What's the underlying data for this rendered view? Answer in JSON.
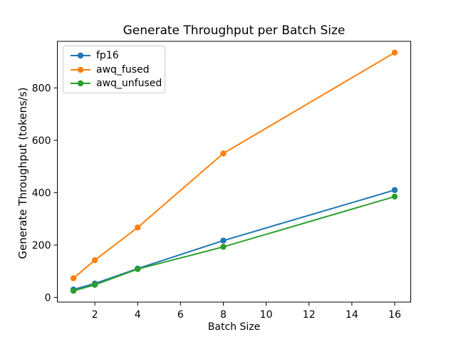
{
  "chart_data": {
    "type": "line",
    "title": "Generate Throughput per Batch Size",
    "xlabel": "Batch Size",
    "ylabel": "Generate Throughput (tokens/s)",
    "x": [
      1,
      2,
      4,
      8,
      16
    ],
    "series": [
      {
        "name": "fp16",
        "color": "#1f77b4",
        "values": [
          30,
          53,
          110,
          217,
          410
        ]
      },
      {
        "name": "awq_fused",
        "color": "#ff7f0e",
        "values": [
          73,
          142,
          267,
          550,
          935
        ]
      },
      {
        "name": "awq_unfused",
        "color": "#2ca02c",
        "values": [
          25,
          48,
          108,
          193,
          385
        ]
      }
    ],
    "x_ticks": [
      2,
      4,
      6,
      8,
      10,
      12,
      14,
      16
    ],
    "y_ticks": [
      0,
      200,
      400,
      600,
      800
    ],
    "xlim": [
      0.25,
      16.75
    ],
    "ylim": [
      -18,
      978
    ],
    "grid": false,
    "marker": "o",
    "legend_position": "upper left",
    "background_color": "#ffffff",
    "text_color": "#000000"
  }
}
